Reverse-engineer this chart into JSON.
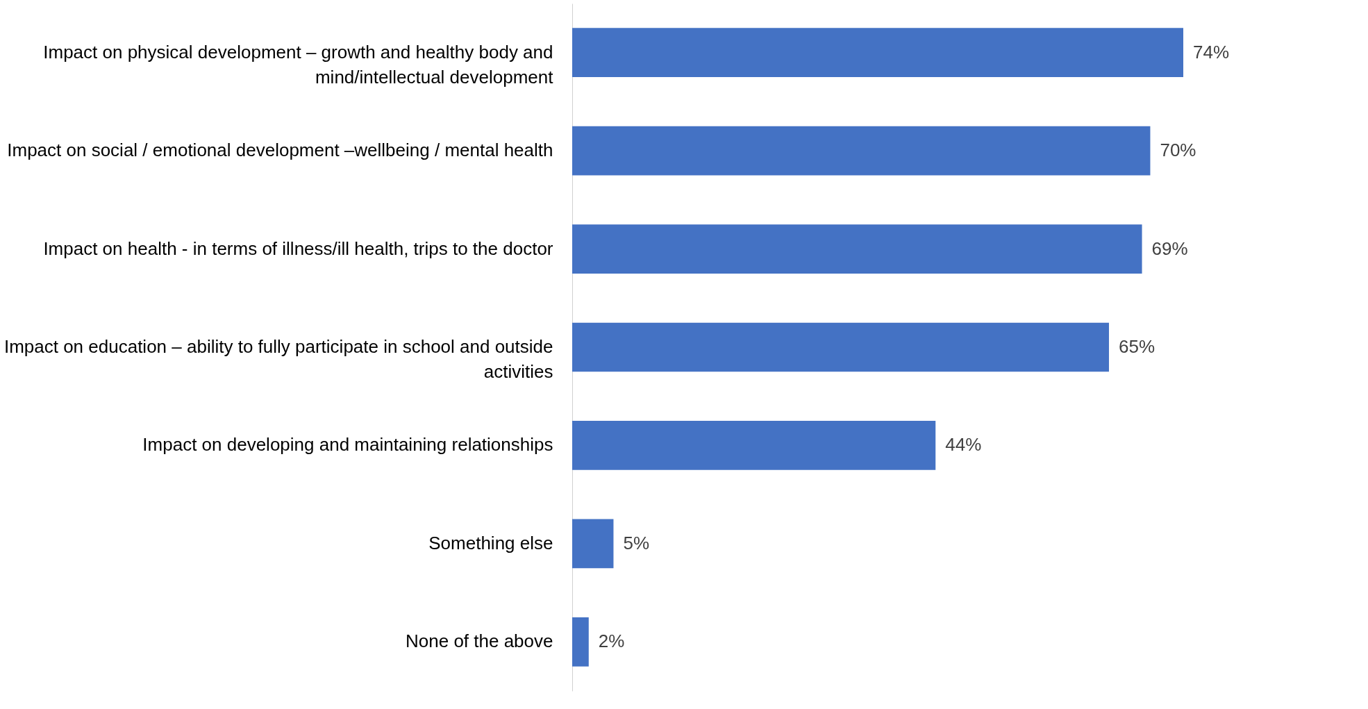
{
  "chart_data": {
    "type": "bar",
    "orientation": "horizontal",
    "categories": [
      "Impact on physical development – growth and healthy body and mind/intellectual development",
      "Impact on social / emotional development –wellbeing / mental health",
      "Impact on health - in terms of illness/ill health, trips to the doctor",
      "Impact on education – ability to fully participate in school and outside activities",
      "Impact on developing and maintaining relationships",
      "Something else",
      "None of the above"
    ],
    "values": [
      74,
      70,
      69,
      65,
      44,
      5,
      2
    ],
    "value_labels": [
      "74%",
      "70%",
      "69%",
      "65%",
      "44%",
      "5%",
      "2%"
    ],
    "color": "#4472c4"
  }
}
